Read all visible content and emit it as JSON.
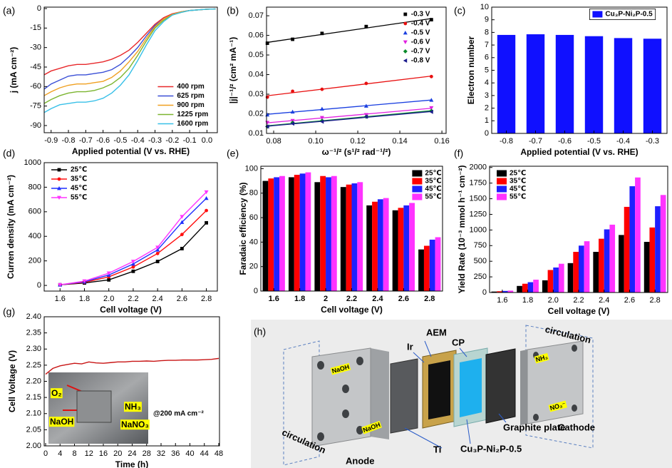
{
  "chart_data": [
    {
      "type": "line",
      "panel": "(a)",
      "x_label": "Applied potential (V vs. RHE)",
      "y_label": "j (mA cm⁻²)",
      "x": [
        -0.94,
        -0.9,
        -0.85,
        -0.8,
        -0.75,
        -0.7,
        -0.65,
        -0.6,
        -0.55,
        -0.5,
        -0.45,
        -0.4,
        -0.35,
        -0.3,
        -0.25,
        -0.2,
        -0.15,
        -0.1,
        -0.05,
        0,
        0.05
      ],
      "xlim": [
        -0.94,
        0.06
      ],
      "xticks": [
        -0.9,
        -0.8,
        -0.7,
        -0.6,
        -0.5,
        -0.4,
        -0.3,
        -0.2,
        -0.1,
        {
          "value": 0,
          "label": "0.0"
        }
      ],
      "ylim": [
        -95.5,
        1.1
      ],
      "yticks": [
        0,
        -15,
        -30,
        -45,
        -60,
        -75,
        -90
      ],
      "legend": "lower-right",
      "series": [
        {
          "name": "400 rpm",
          "color": "#e8282b",
          "values": [
            -51,
            -48,
            -46,
            -44,
            -43,
            -43,
            -42,
            -41,
            -39,
            -36,
            -32,
            -26,
            -19,
            -12,
            -7,
            -4,
            -2.5,
            -1.5,
            -1,
            -0.5,
            -0.3
          ]
        },
        {
          "name": "625 rpm",
          "color": "#3a4fd6",
          "values": [
            -62,
            -58,
            -55,
            -52,
            -51,
            -51,
            -50,
            -49,
            -47,
            -43,
            -37,
            -30,
            -21,
            -13,
            -8,
            -4.5,
            -2.5,
            -1.5,
            -1,
            -0.5,
            -0.3
          ]
        },
        {
          "name": "900 rpm",
          "color": "#f0a020",
          "values": [
            -67,
            -64,
            -61,
            -59,
            -58,
            -58,
            -57,
            -56,
            -53,
            -48,
            -41,
            -33,
            -23,
            -14,
            -8,
            -4.5,
            -2.5,
            -1.5,
            -1,
            -0.5,
            -0.3
          ]
        },
        {
          "name": "1225 rpm",
          "color": "#7cb530",
          "values": [
            -73,
            -70,
            -67,
            -65,
            -64,
            -64,
            -63,
            -61,
            -58,
            -53,
            -46,
            -36,
            -25,
            -15,
            -9,
            -5,
            -3,
            -1.5,
            -1,
            -0.5,
            -0.3
          ]
        },
        {
          "name": "1600 rpm",
          "color": "#38c0e8",
          "values": [
            -80,
            -77,
            -74,
            -73,
            -72,
            -72,
            -71,
            -69,
            -65,
            -59,
            -51,
            -40,
            -28,
            -17,
            -10,
            -5,
            -3,
            -1.5,
            -1,
            -0.5,
            -0.3
          ]
        }
      ]
    },
    {
      "type": "scatter",
      "panel": "(b)",
      "x_label": "ω⁻¹/² (s¹/² rad⁻¹/²)",
      "y_label": "|j|⁻¹/² (cm² mA⁻¹)",
      "x": [
        0.077,
        0.089,
        0.103,
        0.124,
        0.155
      ],
      "xlim": [
        0.0766,
        0.162
      ],
      "xticks": [
        0.08,
        {
          "value": 0.1,
          "label": "0.10"
        },
        0.12,
        0.14,
        0.16
      ],
      "ylim": [
        0.01,
        0.0744
      ],
      "yticks": [
        0.01,
        0.02,
        0.03,
        0.04,
        0.05,
        0.06,
        0.07
      ],
      "legend": "upper-right",
      "fit_line": true,
      "series": [
        {
          "name": "-0.3 V",
          "color": "#000000",
          "marker": "square",
          "values": [
            0.056,
            0.058,
            0.061,
            0.0645,
            0.068
          ]
        },
        {
          "name": "-0.4 V",
          "color": "#e81010",
          "marker": "circle",
          "values": [
            0.0285,
            0.0315,
            0.0325,
            0.0355,
            0.039
          ]
        },
        {
          "name": "-0.5 V",
          "color": "#1a3fe0",
          "marker": "triangle-up",
          "values": [
            0.0195,
            0.021,
            0.0225,
            0.024,
            0.027
          ]
        },
        {
          "name": "-0.6 V",
          "color": "#e020e0",
          "marker": "triangle-down",
          "values": [
            0.0155,
            0.0165,
            0.018,
            0.0195,
            0.023
          ]
        },
        {
          "name": "-0.7 V",
          "color": "#0a8a2a",
          "marker": "diamond",
          "values": [
            0.0135,
            0.0155,
            0.0165,
            0.0185,
            0.0215
          ]
        },
        {
          "name": "-0.8 V",
          "color": "#1a1a8c",
          "marker": "triangle-left",
          "values": [
            0.0135,
            0.015,
            0.016,
            0.0185,
            0.021
          ]
        }
      ]
    },
    {
      "type": "bar",
      "panel": "(c)",
      "x_label": "Applied potential (V vs. RHE)",
      "y_label": "Electron number",
      "categories": [
        "-0.8",
        "-0.7",
        "-0.6",
        "-0.5",
        "-0.4",
        "-0.3"
      ],
      "values": [
        7.8,
        7.85,
        7.8,
        7.7,
        7.55,
        7.5
      ],
      "color": "#1010ff",
      "legend_label": "Cu₃P-Ni₂P-0.5",
      "legend": "upper-right",
      "legend_frame": true,
      "ylim": [
        0,
        10
      ],
      "yticks": [
        0,
        1,
        2,
        3,
        4,
        5,
        6,
        7,
        8,
        9,
        10
      ]
    },
    {
      "type": "line",
      "panel": "(d)",
      "x_label": "Cell voltage (V)",
      "y_label": "Curren density (mA cm⁻²)",
      "x": [
        1.6,
        1.8,
        2.0,
        2.2,
        2.4,
        2.6,
        2.8
      ],
      "xlim": [
        1.47,
        2.89
      ],
      "xticks": [
        1.6,
        1.8,
        {
          "value": 2,
          "label": "2.0"
        },
        2.2,
        2.4,
        2.6,
        2.8
      ],
      "ylim": [
        -46,
        1000
      ],
      "yticks": [
        0,
        200,
        400,
        600,
        800,
        1000
      ],
      "legend": "upper-left",
      "series": [
        {
          "name": "25℃",
          "color": "#000000",
          "marker": "square",
          "values": [
            5,
            20,
            45,
            115,
            195,
            300,
            510
          ]
        },
        {
          "name": "35℃",
          "color": "#ff1010",
          "marker": "circle",
          "values": [
            5,
            25,
            70,
            150,
            260,
            415,
            610
          ]
        },
        {
          "name": "45℃",
          "color": "#1f2fff",
          "marker": "triangle-up",
          "values": [
            5,
            30,
            85,
            175,
            290,
            515,
            710
          ]
        },
        {
          "name": "55℃",
          "color": "#ff33ff",
          "marker": "triangle-down",
          "values": [
            5,
            35,
            100,
            195,
            310,
            560,
            760
          ]
        }
      ]
    },
    {
      "type": "bar",
      "panel": "(e)",
      "x_label": "Cell voltage (V)",
      "y_label": "Faradaic efficiency (%)",
      "categories": [
        "1.6",
        "1.8",
        "2",
        "2.2",
        "2.4",
        "2.6",
        "2.8"
      ],
      "ylim": [
        0,
        102
      ],
      "yticks": [
        0,
        20,
        40,
        60,
        80,
        100
      ],
      "legend": "upper-right",
      "series": [
        {
          "name": "25℃",
          "color": "#000000",
          "values": [
            90,
            93,
            89,
            85,
            70,
            66,
            34
          ]
        },
        {
          "name": "35℃",
          "color": "#ff0000",
          "values": [
            92,
            95,
            94,
            87,
            73,
            68,
            37
          ]
        },
        {
          "name": "45℃",
          "color": "#1f1fff",
          "values": [
            93,
            96,
            93,
            88,
            75,
            70,
            42
          ]
        },
        {
          "name": "55℃",
          "color": "#ff33ff",
          "values": [
            94,
            97,
            94,
            89,
            76,
            72,
            44
          ]
        }
      ]
    },
    {
      "type": "bar",
      "panel": "(f)",
      "x_label": "Cell voltage (V)",
      "y_label": "Yield Rate (10⁻³ mmol h⁻¹ cm⁻²)",
      "categories": [
        "1.6",
        "1.8",
        "2.0",
        "2.2",
        "2.4",
        "2.6",
        "2.8"
      ],
      "ylim": [
        0,
        2020
      ],
      "yticks": [
        0,
        250,
        500,
        750,
        1000,
        1250,
        1500,
        1750,
        2000
      ],
      "legend": "upper-left",
      "series": [
        {
          "name": "25℃",
          "color": "#000000",
          "values": [
            15,
            105,
            195,
            470,
            650,
            920,
            810
          ]
        },
        {
          "name": "35℃",
          "color": "#ff0000",
          "values": [
            20,
            140,
            360,
            650,
            860,
            1370,
            1040
          ]
        },
        {
          "name": "45℃",
          "color": "#1f1fff",
          "values": [
            25,
            165,
            400,
            750,
            1010,
            1700,
            1380
          ]
        },
        {
          "name": "55℃",
          "color": "#ff33ff",
          "values": [
            30,
            205,
            460,
            820,
            1085,
            1840,
            1560
          ]
        }
      ]
    },
    {
      "type": "line",
      "panel": "(g)",
      "x_label": "Time (h)",
      "y_label": "Cell Voltage (V)",
      "annotation": "@200 mA cm⁻²",
      "inset_labels": [
        "O₂",
        "NaOH",
        "NH₃",
        "NaNO₃"
      ],
      "x": [
        0,
        2,
        4,
        6,
        8,
        10,
        12,
        14,
        16,
        18,
        20,
        22,
        24,
        26,
        28,
        30,
        32,
        34,
        36,
        38,
        40,
        42,
        44,
        46,
        48
      ],
      "xlim": [
        -0.4,
        48.2
      ],
      "xticks": [
        0,
        4,
        8,
        12,
        16,
        20,
        24,
        28,
        32,
        36,
        40,
        44,
        48
      ],
      "ylim": [
        2.0,
        2.4
      ],
      "yticks": [
        {
          "value": 2.0,
          "label": "2.00"
        },
        2.05,
        {
          "value": 2.1,
          "label": "2.10"
        },
        2.15,
        {
          "value": 2.2,
          "label": "2.20"
        },
        2.25,
        {
          "value": 2.3,
          "label": "2.30"
        },
        2.35,
        {
          "value": 2.4,
          "label": "2.40"
        }
      ],
      "series": [
        {
          "name": "Cell Voltage",
          "color": "#c81414",
          "values": [
            2.222,
            2.24,
            2.248,
            2.252,
            2.256,
            2.254,
            2.26,
            2.257,
            2.256,
            2.258,
            2.26,
            2.26,
            2.262,
            2.262,
            2.263,
            2.262,
            2.264,
            2.265,
            2.265,
            2.266,
            2.266,
            2.266,
            2.267,
            2.268,
            2.271
          ]
        }
      ]
    }
  ],
  "diagram": {
    "panel": "(h)",
    "labels": [
      "AEM",
      "Ir",
      "CP",
      "circulation",
      "NaOH",
      "NH₃",
      "NO₃⁻",
      "Graphite plate",
      "Cathode",
      "circulation",
      "NaOH",
      "Ti",
      "Cu₃P-Ni₂P-0.5",
      "Anode"
    ]
  }
}
